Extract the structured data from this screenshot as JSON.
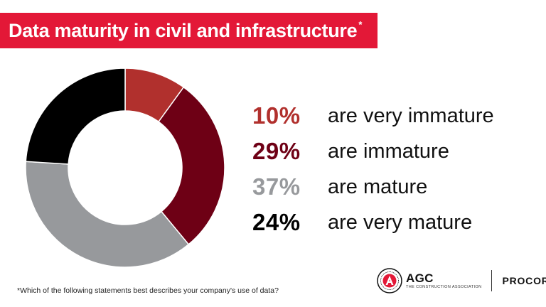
{
  "title": {
    "text": "Data maturity in civil and infrastructure",
    "mark": "*"
  },
  "colors": {
    "banner": "#e31837",
    "very_immature": "#b1302d",
    "immature": "#6e0015",
    "mature": "#97999c",
    "very_mature": "#000000"
  },
  "chart_data": {
    "type": "pie",
    "donut": true,
    "categories": [
      "are very immature",
      "are immature",
      "are mature",
      "are very mature"
    ],
    "values": [
      10,
      29,
      37,
      24
    ],
    "labels": [
      "10%",
      "29%",
      "37%",
      "24%"
    ],
    "colors": [
      "#b1302d",
      "#6e0015",
      "#97999c",
      "#000000"
    ],
    "legend_placement": "right"
  },
  "footnote": "*Which of the following statements best describes your company's use of data?",
  "logos": {
    "agc": {
      "word": "AGC",
      "subtitle": "THE CONSTRUCTION ASSOCIATION"
    },
    "procore": {
      "word": "PROCORE"
    }
  }
}
